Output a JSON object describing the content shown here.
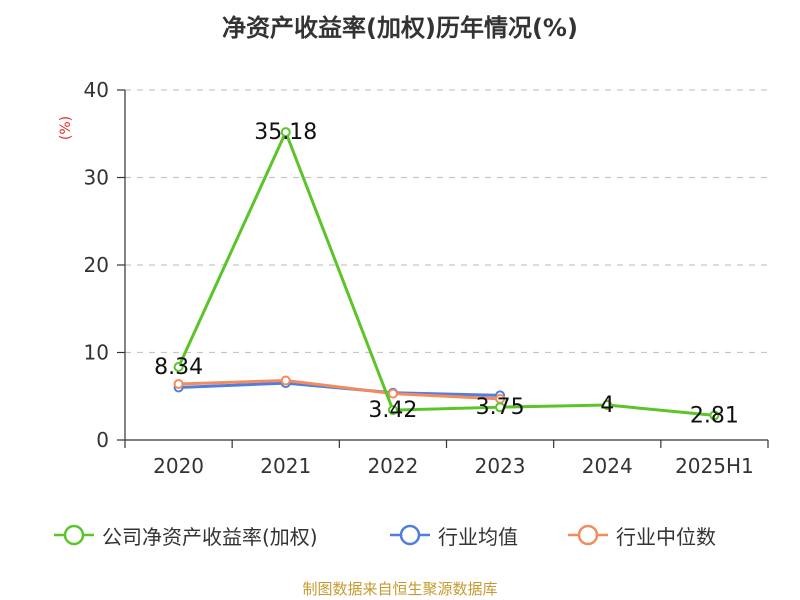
{
  "chart_data": {
    "type": "line",
    "title": "净资产收益率(加权)历年情况(%)",
    "ylabel": "(%)",
    "categories": [
      "2020",
      "2021",
      "2022",
      "2023",
      "2024",
      "2025H1"
    ],
    "ylim": [
      0,
      40
    ],
    "yticks": [
      0,
      10,
      20,
      30,
      40
    ],
    "grid": true,
    "legend_position": "bottom",
    "series": [
      {
        "name": "公司净资产收益率(加权)",
        "color": "#5cc42b",
        "values": [
          8.34,
          35.18,
          3.42,
          3.75,
          4,
          2.81
        ],
        "labels": [
          "8.34",
          "35.18",
          "3.42",
          "3.75",
          "4",
          "2.81"
        ]
      },
      {
        "name": "行业均值",
        "color": "#4f7ede",
        "values": [
          6.0,
          6.5,
          5.4,
          5.1,
          null,
          null
        ]
      },
      {
        "name": "行业中位数",
        "color": "#f28c5e",
        "values": [
          6.4,
          6.8,
          5.3,
          4.7,
          null,
          null
        ]
      }
    ]
  },
  "source_note": "制图数据来自恒生聚源数据库"
}
